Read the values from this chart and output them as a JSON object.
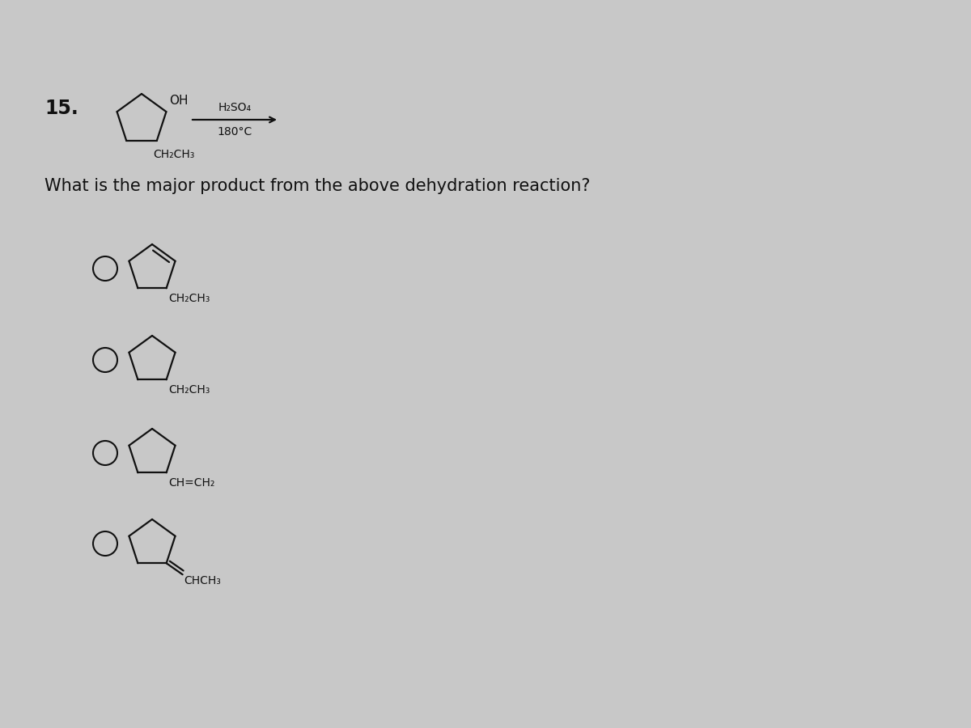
{
  "background_color": "#c8c8c8",
  "panel_color": "#ebebeb",
  "question_number": "15.",
  "question_text": "What is the major product from the above dehydration reaction?",
  "reagent_above": "H₂SO₄",
  "reagent_below": "180°C",
  "oh_label": "OH",
  "reactant_sub": "CH₂CH₃",
  "option_a_sub": "CH₂CH₃",
  "option_b_sub": "CH₂CH₃",
  "option_c_sub": "CH=CH₂",
  "option_d_sub": "CHCH₃",
  "line_color": "#111111",
  "text_color": "#111111",
  "fontsize_question": 15,
  "fontsize_label": 11,
  "fontsize_sub": 10,
  "fontsize_number": 17,
  "arrow_color": "#111111"
}
